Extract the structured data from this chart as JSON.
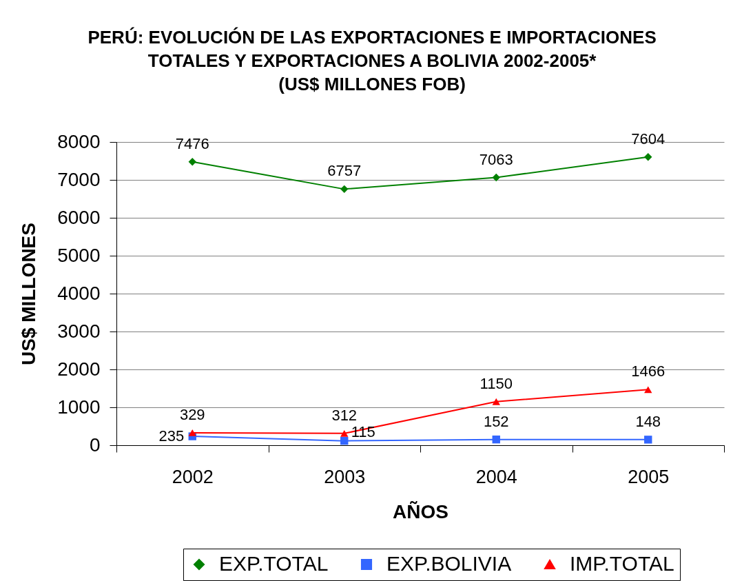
{
  "chart_data": {
    "type": "line",
    "title": "PERÚ: EVOLUCIÓN DE LAS EXPORTACIONES E IMPORTACIONES\nTOTALES Y EXPORTACIONES A BOLIVIA 2002-2005*\n(US$ MILLONES FOB)",
    "xlabel": "AÑOS",
    "ylabel": "US$ MILLONES",
    "categories": [
      "2002",
      "2003",
      "2004",
      "2005"
    ],
    "series": [
      {
        "name": "EXP.TOTAL",
        "color": "#008000",
        "marker": "diamond",
        "values": [
          7476,
          6757,
          7063,
          7604
        ]
      },
      {
        "name": "EXP.BOLIVIA",
        "color": "#3366ff",
        "marker": "square",
        "values": [
          235,
          115,
          152,
          148
        ]
      },
      {
        "name": "IMP.TOTAL",
        "color": "#ff0000",
        "marker": "triangle",
        "values": [
          329,
          312,
          1150,
          1466
        ]
      }
    ],
    "ylim": [
      0,
      8000
    ],
    "yticks": [
      0,
      1000,
      2000,
      3000,
      4000,
      5000,
      6000,
      7000,
      8000
    ],
    "grid": "y",
    "legend": "bottom",
    "data_labels": true,
    "line_style": "solid"
  }
}
